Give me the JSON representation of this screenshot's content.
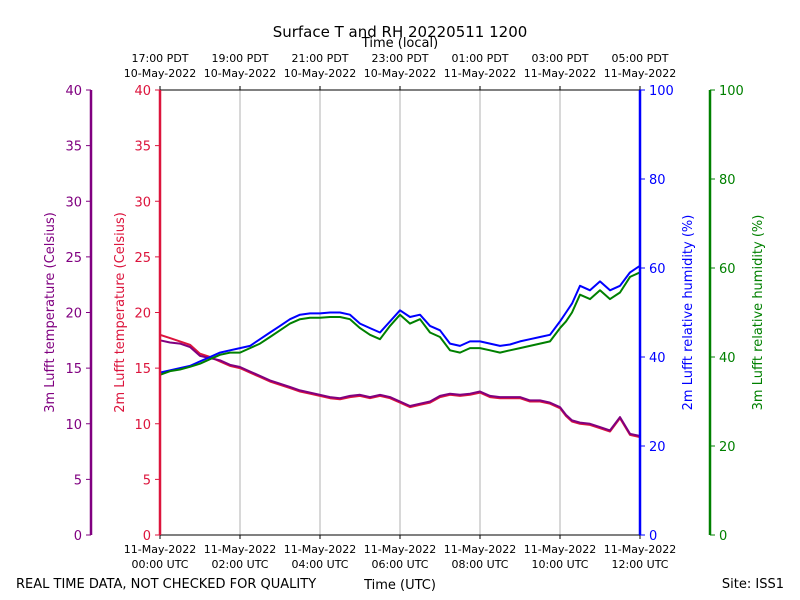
{
  "chart_data": {
    "type": "line",
    "title": "Surface T and RH 20220511 1200",
    "top_axis_label": "Time (local)",
    "bottom_axis_label": "Time (UTC)",
    "top_ticks": [
      {
        "line1": "17:00 PDT",
        "line2": "10-May-2022"
      },
      {
        "line1": "19:00 PDT",
        "line2": "10-May-2022"
      },
      {
        "line1": "21:00 PDT",
        "line2": "10-May-2022"
      },
      {
        "line1": "23:00 PDT",
        "line2": "10-May-2022"
      },
      {
        "line1": "01:00 PDT",
        "line2": "11-May-2022"
      },
      {
        "line1": "03:00 PDT",
        "line2": "11-May-2022"
      },
      {
        "line1": "05:00 PDT",
        "line2": "11-May-2022"
      }
    ],
    "bottom_ticks": [
      {
        "line1": "11-May-2022",
        "line2": "00:00 UTC"
      },
      {
        "line1": "11-May-2022",
        "line2": "02:00 UTC"
      },
      {
        "line1": "11-May-2022",
        "line2": "04:00 UTC"
      },
      {
        "line1": "11-May-2022",
        "line2": "06:00 UTC"
      },
      {
        "line1": "11-May-2022",
        "line2": "08:00 UTC"
      },
      {
        "line1": "11-May-2022",
        "line2": "10:00 UTC"
      },
      {
        "line1": "11-May-2022",
        "line2": "12:00 UTC"
      }
    ],
    "x_range_hours": [
      0,
      12
    ],
    "grid": "vertical",
    "axes": {
      "t3m": {
        "label": "3m Lufft temperature (Celsius)",
        "range": [
          0,
          40
        ],
        "ticks": [
          0,
          5,
          10,
          15,
          20,
          25,
          30,
          35,
          40
        ],
        "color": "#800080"
      },
      "t2m": {
        "label": "2m Lufft temperature (Celsius)",
        "range": [
          0,
          40
        ],
        "ticks": [
          0,
          5,
          10,
          15,
          20,
          25,
          30,
          35,
          40
        ],
        "color": "#dc143c"
      },
      "rh2m": {
        "label": "2m Lufft relative humidity (%)",
        "range": [
          0,
          100
        ],
        "ticks": [
          0,
          20,
          40,
          60,
          80,
          100
        ],
        "color": "#0000ff"
      },
      "rh3m": {
        "label": "3m Lufft relative humidity (%)",
        "range": [
          0,
          100
        ],
        "ticks": [
          0,
          20,
          40,
          60,
          80,
          100
        ],
        "color": "#008000"
      }
    },
    "series": [
      {
        "name": "2m Lufft temperature",
        "axis": "t2m",
        "color": "#dc143c",
        "x": [
          0,
          0.25,
          0.5,
          0.75,
          1.0,
          1.25,
          1.5,
          1.75,
          2.0,
          2.25,
          2.5,
          2.75,
          3.0,
          3.25,
          3.5,
          3.75,
          4.0,
          4.25,
          4.5,
          4.75,
          5.0,
          5.25,
          5.5,
          5.75,
          6.0,
          6.25,
          6.5,
          6.75,
          7.0,
          7.25,
          7.5,
          7.75,
          8.0,
          8.25,
          8.5,
          8.75,
          9.0,
          9.25,
          9.5,
          9.75,
          10.0,
          10.15,
          10.3,
          10.5,
          10.75,
          11.0,
          11.25,
          11.5,
          11.75,
          12.0
        ],
        "values": [
          18.0,
          17.7,
          17.4,
          17.1,
          16.3,
          16.0,
          15.6,
          15.2,
          15.0,
          14.6,
          14.2,
          13.8,
          13.5,
          13.2,
          12.9,
          12.7,
          12.5,
          12.3,
          12.2,
          12.4,
          12.5,
          12.3,
          12.5,
          12.3,
          11.9,
          11.5,
          11.7,
          11.9,
          12.4,
          12.6,
          12.5,
          12.6,
          12.8,
          12.4,
          12.3,
          12.3,
          12.3,
          12.0,
          12.0,
          11.8,
          11.4,
          10.7,
          10.2,
          10.0,
          9.9,
          9.6,
          9.3,
          10.5,
          9.0,
          8.8
        ]
      },
      {
        "name": "3m Lufft temperature",
        "axis": "t3m",
        "color": "#800080",
        "x": [
          0,
          0.25,
          0.5,
          0.75,
          1.0,
          1.25,
          1.5,
          1.75,
          2.0,
          2.25,
          2.5,
          2.75,
          3.0,
          3.25,
          3.5,
          3.75,
          4.0,
          4.25,
          4.5,
          4.75,
          5.0,
          5.25,
          5.5,
          5.75,
          6.0,
          6.25,
          6.5,
          6.75,
          7.0,
          7.25,
          7.5,
          7.75,
          8.0,
          8.25,
          8.5,
          8.75,
          9.0,
          9.25,
          9.5,
          9.75,
          10.0,
          10.15,
          10.3,
          10.5,
          10.75,
          11.0,
          11.25,
          11.5,
          11.75,
          12.0
        ],
        "values": [
          17.5,
          17.3,
          17.2,
          16.9,
          16.1,
          15.9,
          15.7,
          15.3,
          15.1,
          14.7,
          14.3,
          13.9,
          13.6,
          13.3,
          13.0,
          12.8,
          12.6,
          12.4,
          12.3,
          12.5,
          12.6,
          12.4,
          12.6,
          12.4,
          12.0,
          11.6,
          11.8,
          12.0,
          12.5,
          12.7,
          12.6,
          12.7,
          12.9,
          12.5,
          12.4,
          12.4,
          12.4,
          12.1,
          12.1,
          11.9,
          11.5,
          10.8,
          10.3,
          10.1,
          10.0,
          9.7,
          9.4,
          10.6,
          9.1,
          8.9
        ]
      },
      {
        "name": "2m Lufft relative humidity",
        "axis": "rh2m",
        "color": "#0000ff",
        "x": [
          0,
          0.25,
          0.5,
          0.75,
          1.0,
          1.25,
          1.5,
          1.75,
          2.0,
          2.25,
          2.5,
          2.75,
          3.0,
          3.25,
          3.5,
          3.75,
          4.0,
          4.25,
          4.5,
          4.75,
          5.0,
          5.25,
          5.5,
          5.75,
          6.0,
          6.25,
          6.5,
          6.75,
          7.0,
          7.25,
          7.5,
          7.75,
          8.0,
          8.25,
          8.5,
          8.75,
          9.0,
          9.25,
          9.5,
          9.75,
          10.0,
          10.15,
          10.3,
          10.5,
          10.75,
          11.0,
          11.25,
          11.5,
          11.75,
          12.0
        ],
        "values": [
          36.5,
          37.0,
          37.5,
          38.0,
          39.0,
          40.0,
          41.0,
          41.5,
          42.0,
          42.5,
          44.0,
          45.5,
          47.0,
          48.5,
          49.5,
          49.8,
          49.8,
          50.0,
          50.0,
          49.5,
          47.5,
          46.5,
          45.5,
          48.0,
          50.5,
          49.0,
          49.5,
          47.0,
          46.0,
          43.0,
          42.5,
          43.5,
          43.5,
          43.0,
          42.5,
          42.8,
          43.5,
          44.0,
          44.5,
          45.0,
          48.0,
          50.0,
          52.0,
          56.0,
          55.0,
          57.0,
          55.0,
          56.0,
          59.0,
          60.5
        ]
      },
      {
        "name": "3m Lufft relative humidity",
        "axis": "rh3m",
        "color": "#008000",
        "x": [
          0,
          0.25,
          0.5,
          0.75,
          1.0,
          1.25,
          1.5,
          1.75,
          2.0,
          2.25,
          2.5,
          2.75,
          3.0,
          3.25,
          3.5,
          3.75,
          4.0,
          4.25,
          4.5,
          4.75,
          5.0,
          5.25,
          5.5,
          5.75,
          6.0,
          6.25,
          6.5,
          6.75,
          7.0,
          7.25,
          7.5,
          7.75,
          8.0,
          8.25,
          8.5,
          8.75,
          9.0,
          9.25,
          9.5,
          9.75,
          10.0,
          10.15,
          10.3,
          10.5,
          10.75,
          11.0,
          11.25,
          11.5,
          11.75,
          12.0
        ],
        "values": [
          36.0,
          36.8,
          37.2,
          37.8,
          38.5,
          39.5,
          40.5,
          41.0,
          41.0,
          42.0,
          43.0,
          44.5,
          46.0,
          47.5,
          48.5,
          48.8,
          48.8,
          49.0,
          49.0,
          48.5,
          46.5,
          45.0,
          44.0,
          47.0,
          49.5,
          47.5,
          48.5,
          45.5,
          44.5,
          41.5,
          41.0,
          42.0,
          42.0,
          41.5,
          41.0,
          41.5,
          42.0,
          42.5,
          43.0,
          43.5,
          46.5,
          48.0,
          50.0,
          54.0,
          53.0,
          55.0,
          53.0,
          54.5,
          58.0,
          59.0
        ]
      }
    ]
  },
  "footer": {
    "left_note": "REAL TIME DATA, NOT CHECKED FOR QUALITY",
    "site": "Site: ISS1"
  }
}
